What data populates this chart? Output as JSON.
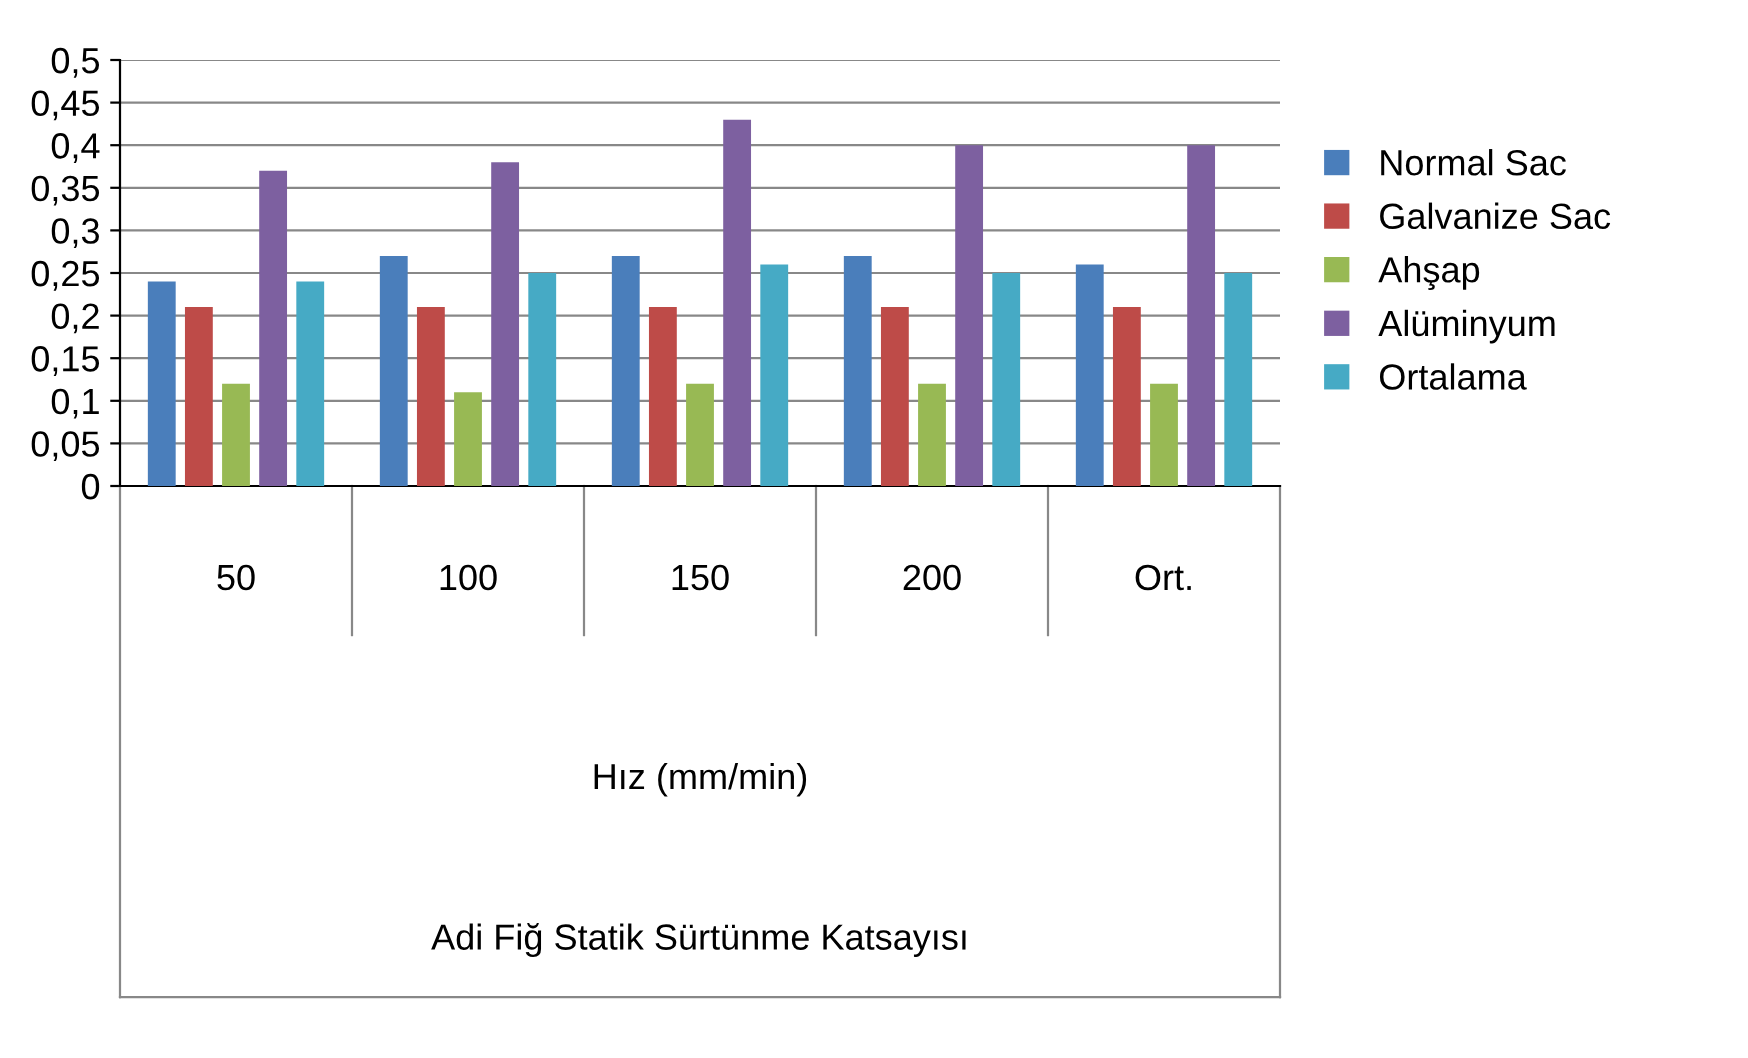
{
  "chart_data": {
    "type": "bar",
    "categories": [
      "50",
      "100",
      "150",
      "200",
      "Ort."
    ],
    "series": [
      {
        "name": "Normal Sac",
        "color": "#4a7ebb",
        "values": [
          0.24,
          0.27,
          0.27,
          0.27,
          0.26
        ]
      },
      {
        "name": "Galvanize Sac",
        "color": "#be4b48",
        "values": [
          0.21,
          0.21,
          0.21,
          0.21,
          0.21
        ]
      },
      {
        "name": "Ahşap",
        "color": "#98b954",
        "values": [
          0.12,
          0.11,
          0.12,
          0.12,
          0.12
        ]
      },
      {
        "name": "Alüminyum",
        "color": "#7d60a0",
        "values": [
          0.37,
          0.38,
          0.43,
          0.4,
          0.4
        ]
      },
      {
        "name": "Ortalama",
        "color": "#46aac5",
        "values": [
          0.24,
          0.25,
          0.26,
          0.25,
          0.25
        ]
      }
    ],
    "xlabel": "Hız (mm/min)",
    "annotations": [
      "Adi Fiğ Statik Sürtünme Katsayısı"
    ],
    "ylim": [
      0,
      0.5
    ],
    "yticks": [
      {
        "value": 0,
        "label": "0"
      },
      {
        "value": 0.05,
        "label": "0,05"
      },
      {
        "value": 0.1,
        "label": "0,1"
      },
      {
        "value": 0.15,
        "label": "0,15"
      },
      {
        "value": 0.2,
        "label": "0,2"
      },
      {
        "value": 0.25,
        "label": "0,25"
      },
      {
        "value": 0.3,
        "label": "0,3"
      },
      {
        "value": 0.35,
        "label": "0,35"
      },
      {
        "value": 0.4,
        "label": "0,4"
      },
      {
        "value": 0.45,
        "label": "0,45"
      },
      {
        "value": 0.5,
        "label": "0,5"
      }
    ],
    "grid": "y",
    "legend": "right"
  }
}
